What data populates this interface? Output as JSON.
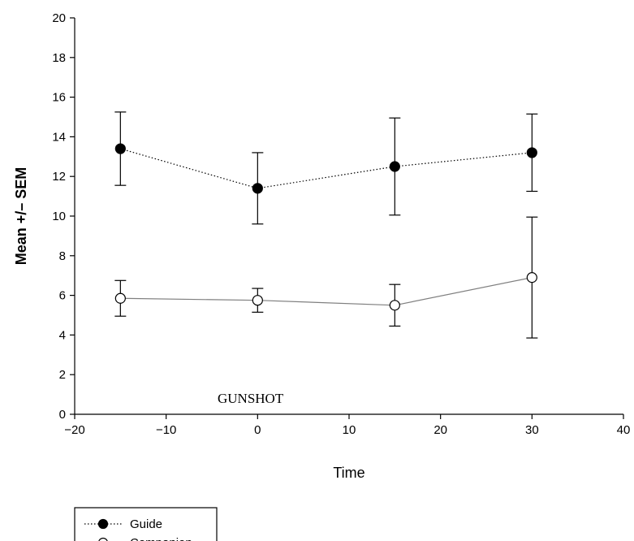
{
  "chart_data": {
    "type": "line",
    "xlabel": "Time",
    "ylabel": "Mean +/– SEM",
    "xlim": [
      -20,
      40
    ],
    "ylim": [
      0,
      20
    ],
    "xticks": [
      -20,
      -10,
      0,
      10,
      20,
      30,
      40
    ],
    "yticks": [
      0,
      2,
      4,
      6,
      8,
      10,
      12,
      14,
      16,
      18,
      20
    ],
    "xtick_labels": [
      "−20",
      "−10",
      "0",
      "10",
      "20",
      "30",
      "40"
    ],
    "ytick_labels": [
      "0",
      "2",
      "4",
      "6",
      "8",
      "10",
      "12",
      "14",
      "16",
      "18",
      "20"
    ],
    "grid": false,
    "legend_position": "bottom-left, below plot",
    "annotation": "GUNSHOT",
    "series": [
      {
        "name": "Guide",
        "marker": "filled-circle",
        "line_style": "dotted",
        "color": "#000000",
        "x": [
          -15,
          0,
          15,
          30
        ],
        "y": [
          13.4,
          11.4,
          12.5,
          13.2
        ],
        "error": [
          1.85,
          1.8,
          2.45,
          1.95
        ]
      },
      {
        "name": "Companion",
        "marker": "open-circle",
        "line_style": "solid",
        "color": "#7f7f7f",
        "x": [
          -15,
          0,
          15,
          30
        ],
        "y": [
          5.85,
          5.75,
          5.5,
          6.9
        ],
        "error": [
          0.9,
          0.6,
          1.05,
          3.05
        ]
      }
    ]
  }
}
